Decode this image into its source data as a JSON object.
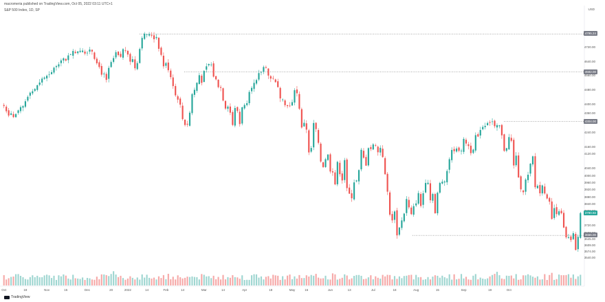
{
  "header": {
    "publisher_line": "macromeria published on TradingView.com, Oct 05, 2022 03:11 UTC+1",
    "symbol_line": "S&P 500 Index, 1D, SP"
  },
  "currency": "USD",
  "price_boxes": [
    {
      "label": "4795.24",
      "value": 4795.24,
      "color": "#787b86"
    },
    {
      "label": "4582.00",
      "value": 4582.0,
      "color": "#787b86"
    },
    {
      "label": "4304.00",
      "value": 4304.0,
      "color": "#787b86"
    },
    {
      "label": "3790.92",
      "value": 3790.92,
      "color": "#26a69a"
    },
    {
      "label": "3666.00",
      "value": 3666.0,
      "color": "#787b86"
    }
  ],
  "branding": {
    "name": "TradingView",
    "icon": "tradingview-logo-icon"
  },
  "chart_data": {
    "type": "candlestick",
    "y_axis": {
      "side": "right",
      "ylim": [
        3520,
        4870
      ],
      "ticks": [
        "4800.00",
        "4720.00",
        "4640.00",
        "4560.00",
        "4480.00",
        "4400.00",
        "4350.00",
        "4240.00",
        "4160.00",
        "4120.00",
        "4040.00",
        "4000.00",
        "3960.00",
        "3920.00",
        "3880.00",
        "3840.00",
        "3800.00",
        "3720.00",
        "3680.00",
        "3645.00",
        "3609.00",
        "3574.00",
        "3540.00"
      ],
      "tick_values": [
        4800,
        4720,
        4640,
        4560,
        4480,
        4400,
        4350,
        4240,
        4160,
        4120,
        4040,
        4000,
        3960,
        3920,
        3880,
        3840,
        3800,
        3720,
        3680,
        3645,
        3609,
        3574,
        3540
      ]
    },
    "x_axis": {
      "labels": [
        "Oct",
        "18",
        "Nov",
        "15",
        "Dec",
        "20",
        "2022",
        "14",
        "Feb",
        "14",
        "Mar",
        "14",
        "Apr",
        "18",
        "May",
        "16",
        "Jun",
        "13",
        "Jul",
        "18",
        "Aug",
        "15",
        "Sep",
        "19",
        "Oct"
      ],
      "label_index": [
        0,
        9,
        18,
        26,
        35,
        45,
        52,
        60,
        68,
        75,
        84,
        92,
        101,
        112,
        121,
        127,
        137,
        145,
        155,
        164,
        173,
        182,
        193,
        204,
        212
      ]
    },
    "horizontal_levels": [
      4795.24,
      4582.0,
      4304.0,
      3666.0
    ],
    "closes": [
      4391,
      4362,
      4338,
      4350,
      4329,
      4346,
      4367,
      4385,
      4391,
      4418,
      4443,
      4466,
      4474,
      4487,
      4508,
      4523,
      4545,
      4551,
      4561,
      4568,
      4581,
      4606,
      4615,
      4625,
      4647,
      4659,
      4646,
      4675,
      4680,
      4700,
      4688,
      4697,
      4701,
      4702,
      4685,
      4690,
      4708,
      4697,
      4655,
      4631,
      4610,
      4567,
      4573,
      4538,
      4605,
      4638,
      4660,
      4693,
      4677,
      4667,
      4710,
      4702,
      4680,
      4640,
      4654,
      4603,
      4632,
      4711,
      4773,
      4797,
      4793,
      4794,
      4786,
      4766,
      4778,
      4712,
      4678,
      4614,
      4632,
      4592,
      4553,
      4503,
      4451,
      4427,
      4399,
      4318,
      4285,
      4287,
      4354,
      4458,
      4482,
      4522,
      4564,
      4521,
      4588,
      4614,
      4627,
      4624,
      4556,
      4541,
      4497,
      4493,
      4422,
      4377,
      4388,
      4354,
      4285,
      4380,
      4363,
      4290,
      4384,
      4397,
      4407,
      4470,
      4493,
      4521,
      4537,
      4576,
      4582,
      4610,
      4605,
      4562,
      4545,
      4546,
      4525,
      4497,
      4434,
      4428,
      4396,
      4391,
      4392,
      4413,
      4480,
      4463,
      4376,
      4271,
      4297,
      4259,
      4131,
      4156,
      4296,
      4262,
      4185,
      4080,
      4049,
      4093,
      4119,
      4024,
      4019,
      3952,
      4078,
      4009,
      3974,
      4088,
      3931,
      3900,
      3874,
      3963,
      3974,
      4032,
      4146,
      4101,
      4057,
      4155,
      4150,
      4176,
      4170,
      4132,
      4157,
      4105,
      4009,
      3911,
      3782,
      3750,
      3800,
      3666,
      3710,
      3750,
      3788,
      3870,
      3823,
      3785,
      3830,
      3845,
      3903,
      3831,
      3902,
      3960,
      3961,
      3863,
      3898,
      3790,
      3905,
      3960,
      3967,
      3968,
      4027,
      4093,
      4145,
      4138,
      4153,
      4140,
      4141,
      4207,
      4181,
      4167,
      4127,
      4147,
      4228,
      4220,
      4257,
      4274,
      4280,
      4296,
      4297,
      4305,
      4278,
      4284,
      4283,
      4227,
      4140,
      4155,
      4217,
      4196,
      4058,
      4113,
      3991,
      3924,
      3908,
      3979,
      4006,
      4068,
      4109,
      3936,
      3944,
      3902,
      3946,
      3901,
      3873,
      3855,
      3758,
      3819,
      3785,
      3801,
      3790,
      3710,
      3655,
      3656,
      3640,
      3678,
      3584,
      3658,
      3791
    ]
  }
}
